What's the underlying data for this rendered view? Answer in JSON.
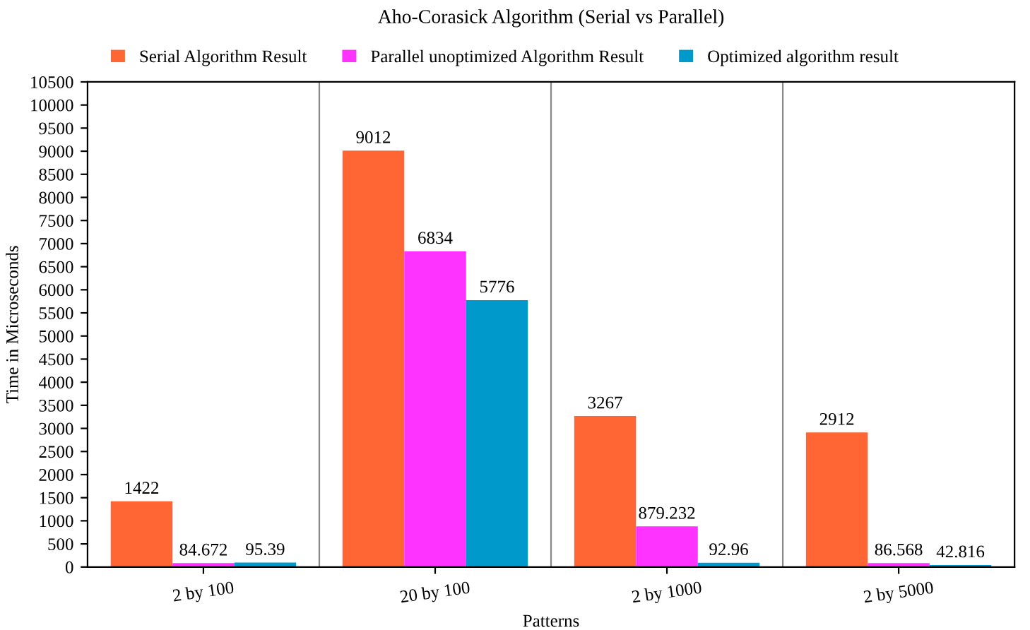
{
  "chart_data": {
    "type": "bar",
    "title": "Aho-Corasick Algorithm (Serial vs Parallel)",
    "xlabel": "Patterns",
    "ylabel": "Time in Microseconds",
    "categories": [
      "2 by 100",
      "20 by 100",
      "2 by 1000",
      "2 by 5000"
    ],
    "series": [
      {
        "name": "Serial Algorithm Result",
        "color": "#ff6633",
        "values": [
          1422,
          9012,
          3267,
          2912
        ]
      },
      {
        "name": "Parallel unoptimized Algorithm Result",
        "color": "#ff33ff",
        "values": [
          84.672,
          6834,
          879.232,
          86.568
        ]
      },
      {
        "name": "Optimized algorithm result",
        "color": "#0099cc",
        "values": [
          95.39,
          5776,
          92.96,
          42.816
        ]
      }
    ],
    "ylim": [
      0,
      10500
    ],
    "yticks": [
      0,
      500,
      1000,
      1500,
      2000,
      2500,
      3000,
      3500,
      4000,
      4500,
      5000,
      5500,
      6000,
      6500,
      7000,
      7500,
      8000,
      8500,
      9000,
      9500,
      10000,
      10500
    ],
    "grid": "x",
    "legend": "top",
    "data_labels": true
  }
}
